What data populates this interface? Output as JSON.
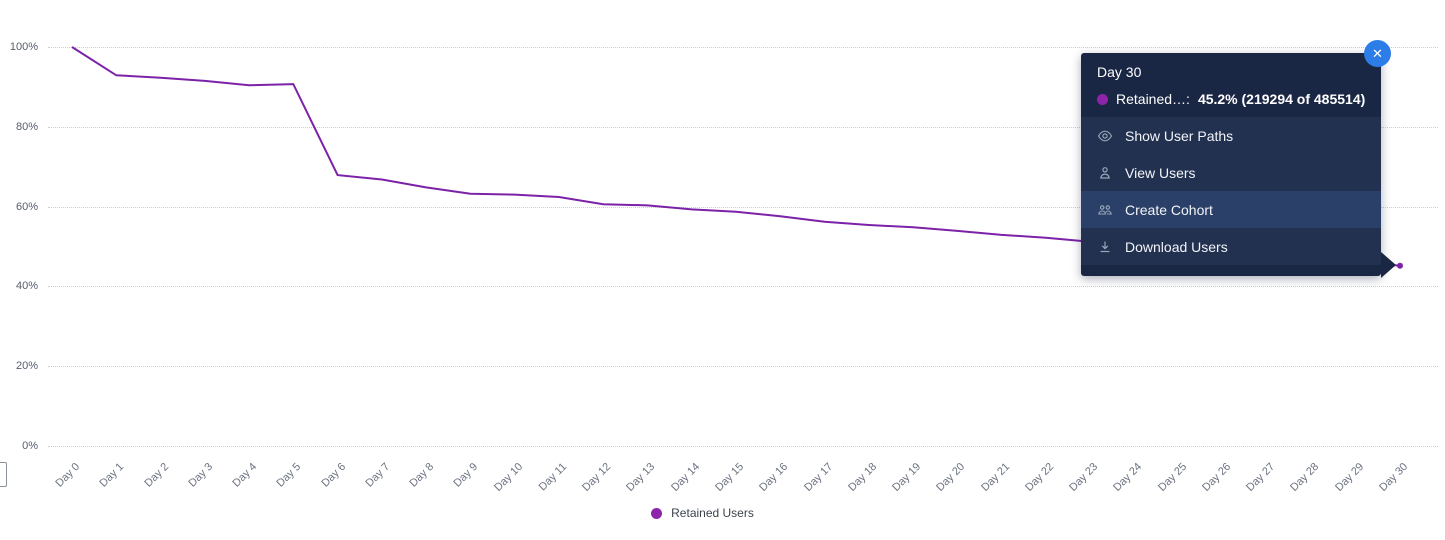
{
  "chart_data": {
    "type": "line",
    "title": "",
    "xlabel": "",
    "ylabel": "",
    "x": [
      "Day 0",
      "Day 1",
      "Day 2",
      "Day 3",
      "Day 4",
      "Day 5",
      "Day 6",
      "Day 7",
      "Day 8",
      "Day 9",
      "Day 10",
      "Day 11",
      "Day 12",
      "Day 13",
      "Day 14",
      "Day 15",
      "Day 16",
      "Day 17",
      "Day 18",
      "Day 19",
      "Day 20",
      "Day 21",
      "Day 22",
      "Day 23",
      "Day 24",
      "Day 25",
      "Day 26",
      "Day 27",
      "Day 28",
      "Day 29",
      "Day 30"
    ],
    "series": [
      {
        "name": "Retained Users",
        "color": "#7c22a8",
        "values": [
          100,
          92.9,
          92.3,
          91.5,
          90.4,
          90.7,
          67.9,
          66.8,
          64.8,
          63.2,
          63.0,
          62.4,
          60.6,
          60.3,
          59.3,
          58.7,
          57.6,
          56.2,
          55.4,
          54.8,
          53.9,
          52.9,
          52.2,
          51.2,
          50.4,
          49.6,
          48.7,
          47.8,
          46.9,
          46.0,
          45.2
        ]
      }
    ],
    "ylim": [
      0,
      100
    ],
    "yticks": [
      {
        "label": "0%",
        "value": 0
      },
      {
        "label": "20%",
        "value": 20
      },
      {
        "label": "40%",
        "value": 40
      },
      {
        "label": "60%",
        "value": 60
      },
      {
        "label": "80%",
        "value": 80
      },
      {
        "label": "100%",
        "value": 100
      }
    ],
    "grid": "horizontal-dotted",
    "legend_position": "bottom-center"
  },
  "tooltip": {
    "title": "Day 30",
    "series_label": "Retained…:",
    "value": "45.2% (219294 of 485514)",
    "dot_color": "#8e24aa",
    "close_glyph": "✕",
    "menu": [
      {
        "icon": "eye-icon",
        "label": "Show User Paths"
      },
      {
        "icon": "user-icon",
        "label": "View Users"
      },
      {
        "icon": "users-group-icon",
        "label": "Create Cohort"
      },
      {
        "icon": "download-icon",
        "label": "Download Users"
      }
    ]
  },
  "legend": {
    "label": "Retained Users",
    "color": "#8e24aa"
  },
  "colors": {
    "line": "#7c22a8",
    "tooltip_bg": "#1a2744",
    "tooltip_row_bg": "#223150",
    "tooltip_row_highlight": "#2b4068",
    "close_button": "#2d7de9",
    "gridline": "#c3cfda"
  }
}
